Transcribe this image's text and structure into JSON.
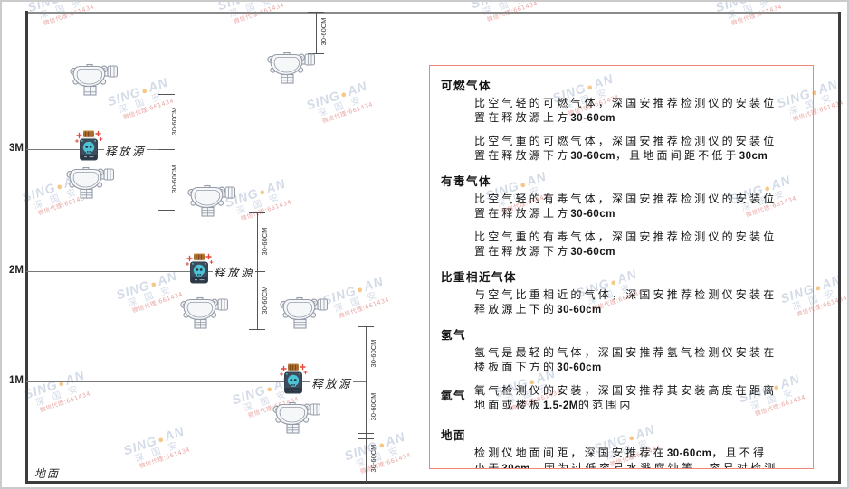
{
  "watermark": {
    "brand_left": "SING",
    "dot_icon": "●",
    "brand_right": "AN",
    "company": "深 国 安",
    "agent_line": "微信代理:661434"
  },
  "diagram": {
    "height_labels": [
      "3M",
      "2M",
      "1M"
    ],
    "ground_label": "地面",
    "source_label": "释放源",
    "dim_label": "30-60CM"
  },
  "panel": {
    "sections": [
      {
        "id": "combustible",
        "heading": "可燃气体",
        "inline": false,
        "paragraphs": [
          [
            {
              "t": "比空气轻的可燃气体，深国安推荐检测仪的安装位置在释放源上方"
            },
            {
              "t": "30-60cm",
              "b": true
            }
          ],
          [
            {
              "t": "比空气重的可燃气体，深国安推荐检测仪的安装位置在释放源下方"
            },
            {
              "t": "30-60cm",
              "b": true
            },
            {
              "t": "，且地面间距不低于"
            },
            {
              "t": "30cm",
              "b": true
            }
          ]
        ]
      },
      {
        "id": "toxic",
        "heading": "有毒气体",
        "inline": false,
        "paragraphs": [
          [
            {
              "t": "比空气轻的有毒气体，深国安推荐检测仪的安装位置在释放源上方"
            },
            {
              "t": "30-60cm",
              "b": true
            }
          ],
          [
            {
              "t": "比空气重的有毒气体，深国安推荐检测仪的安装位置在释放源下方"
            },
            {
              "t": "30-60cm",
              "b": true
            }
          ]
        ]
      },
      {
        "id": "similar-density",
        "heading": "比重相近气体",
        "inline": false,
        "paragraphs": [
          [
            {
              "t": "与空气比重相近的气体，深国安推荐检测仪安装在释放源上下的"
            },
            {
              "t": "30-60cm",
              "b": true
            }
          ]
        ]
      },
      {
        "id": "hydrogen",
        "heading": "氢气",
        "inline": false,
        "paragraphs": [
          [
            {
              "t": "氢气是最轻的气体，深国安推荐氢气检测仪安装在楼板面下方的"
            },
            {
              "t": "30-60cm",
              "b": true
            }
          ]
        ]
      },
      {
        "id": "oxygen",
        "heading": "氧气",
        "inline": true,
        "paragraphs": [
          [
            {
              "t": "氧气检测仪的安装，深国安推荐其安装高度在距离地面或楼板"
            },
            {
              "t": "1.5-2M",
              "b": true
            },
            {
              "t": "的范围内"
            }
          ]
        ]
      },
      {
        "id": "ground",
        "heading": "地面",
        "inline": false,
        "gap_before": true,
        "paragraphs": [
          [
            {
              "t": "检测仪地面间距，深国安推荐在"
            },
            {
              "t": "30-60cm",
              "b": true
            },
            {
              "t": "，且不得小于"
            },
            {
              "t": "30cm",
              "b": true
            },
            {
              "t": "，因为过低容易水溅腐蚀等，容易对检测仪造成伤害"
            }
          ]
        ]
      }
    ]
  },
  "colors": {
    "panel_border": "#f2857b",
    "wm_blue": "#b7c4d8",
    "wm_dot": "#f0a23c",
    "wm_red": "#dc6a66",
    "detector_stroke": "#959ca8",
    "source_body": "#35424f",
    "source_skull": "#4cc4d6",
    "source_cork": "#a96a2d",
    "sparkle_red": "#e2493b"
  }
}
